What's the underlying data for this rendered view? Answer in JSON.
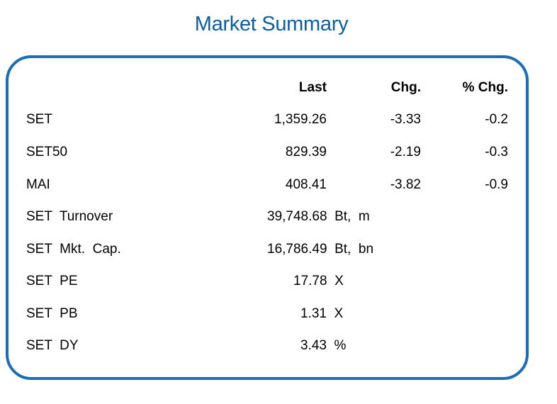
{
  "title": "Market Summary",
  "header": {
    "last": "Last",
    "chg": "Chg.",
    "pct_chg": "% Chg."
  },
  "rows": [
    {
      "label": "SET",
      "last": "1,359.26",
      "chg": "-3.33",
      "pct": "-0.2"
    },
    {
      "label": "SET50",
      "last": "829.39",
      "chg": "-2.19",
      "pct": "-0.3"
    },
    {
      "label": "MAI",
      "last": "408.41",
      "chg": "-3.82",
      "pct": "-0.9"
    }
  ],
  "stats": [
    {
      "label": "SET  Turnover",
      "value": "39,748.68  Bt,  m"
    },
    {
      "label": "SET  Mkt.  Cap.",
      "value": "16,786.49  Bt,  bn"
    },
    {
      "label": "SET  PE",
      "value": "17.78  X"
    },
    {
      "label": "SET  PB",
      "value": "1.31  X"
    },
    {
      "label": "SET  DY",
      "value": "3.43  %"
    }
  ],
  "colors": {
    "title": "#0a5ea8",
    "border": "#1a6eb8"
  }
}
